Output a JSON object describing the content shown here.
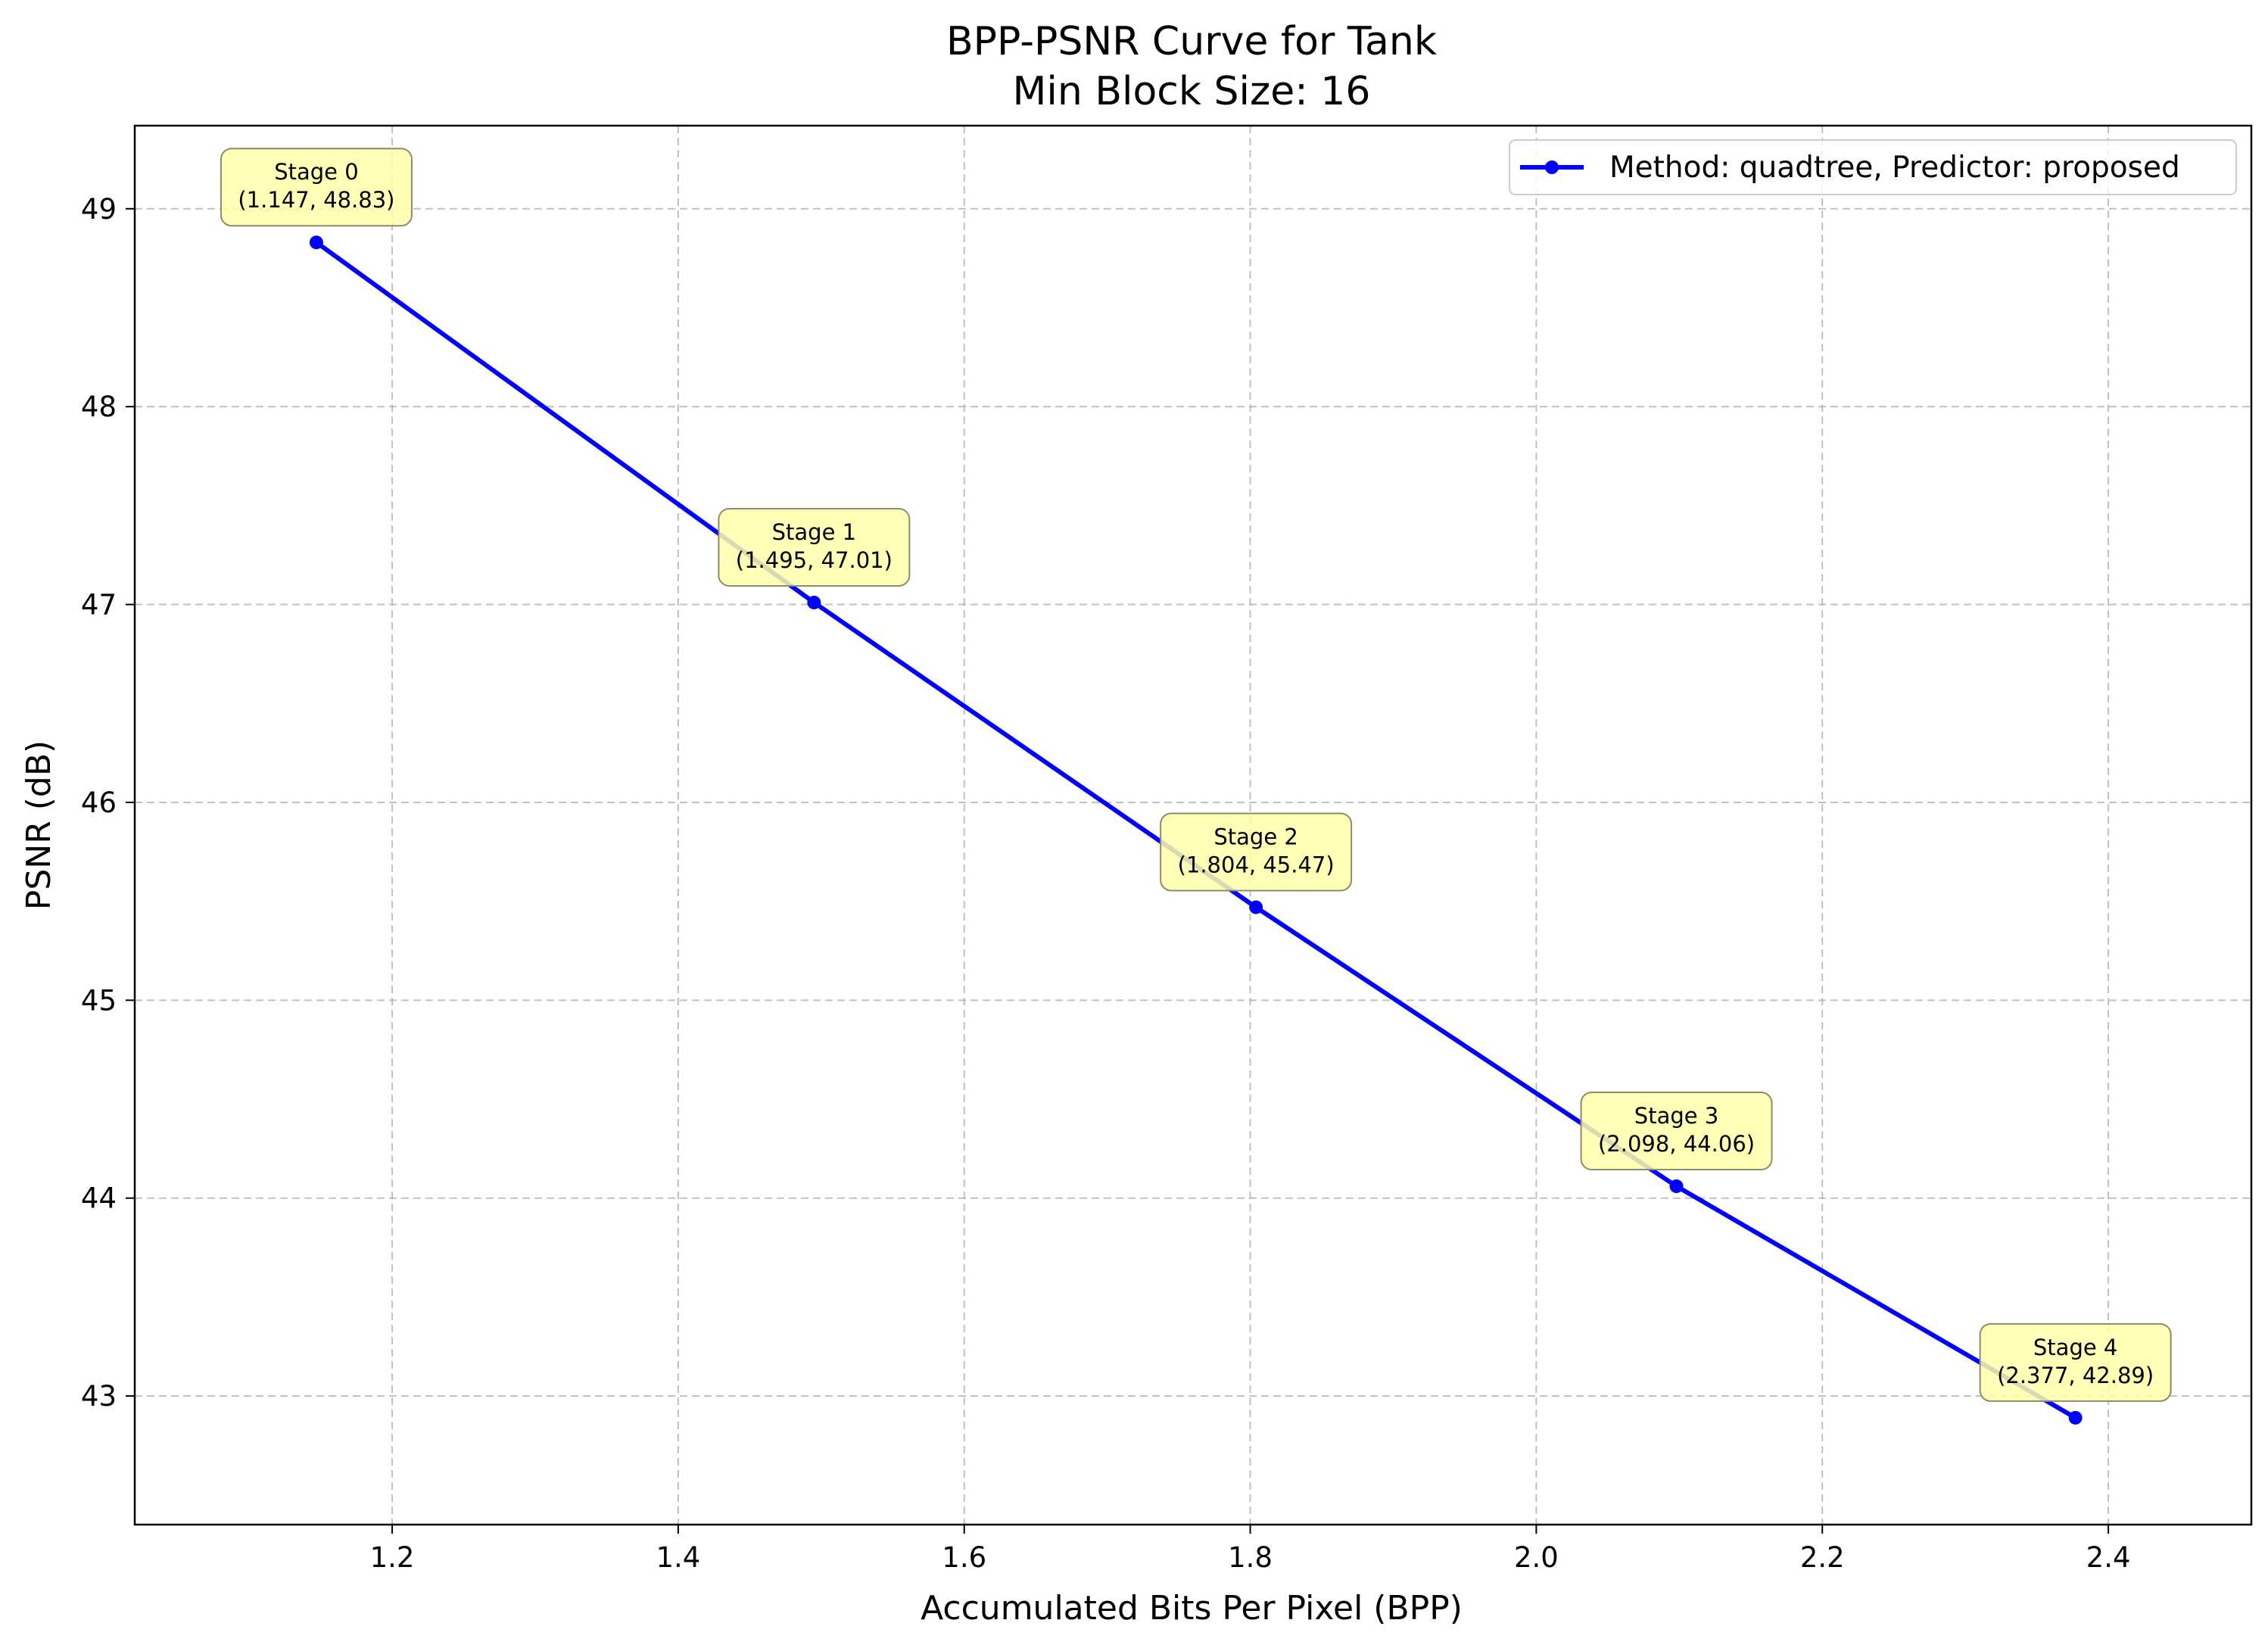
{
  "chart_data": {
    "type": "line",
    "title": "BPP-PSNR Curve for Tank",
    "subtitle": "Min Block Size: 16",
    "xlabel": "Accumulated Bits Per Pixel (BPP)",
    "ylabel": "PSNR (dB)",
    "xlim": [
      1.02,
      2.5
    ],
    "ylim": [
      42.35,
      49.42
    ],
    "xticks": [
      1.2,
      1.4,
      1.6,
      1.8,
      2.0,
      2.2,
      2.4
    ],
    "xtick_labels": [
      "1.2",
      "1.4",
      "1.6",
      "1.8",
      "2.0",
      "2.2",
      "2.4"
    ],
    "yticks": [
      43,
      44,
      45,
      46,
      47,
      48,
      49
    ],
    "ytick_labels": [
      "43",
      "44",
      "45",
      "46",
      "47",
      "48",
      "49"
    ],
    "grid": true,
    "legend_position": "top-right",
    "series": [
      {
        "name": "Method: quadtree, Predictor: proposed",
        "color": "#0000ff",
        "x": [
          1.147,
          1.495,
          1.804,
          2.098,
          2.377
        ],
        "y": [
          48.83,
          47.01,
          45.47,
          44.06,
          42.89
        ]
      }
    ],
    "annotations": [
      {
        "line1": "Stage 0",
        "line2": "(1.147, 48.83)"
      },
      {
        "line1": "Stage 1",
        "line2": "(1.495, 47.01)"
      },
      {
        "line1": "Stage 2",
        "line2": "(1.804, 45.47)"
      },
      {
        "line1": "Stage 3",
        "line2": "(2.098, 44.06)"
      },
      {
        "line1": "Stage 4",
        "line2": "(2.377, 42.89)"
      }
    ],
    "annotation_box_color": "#ffffa8"
  }
}
